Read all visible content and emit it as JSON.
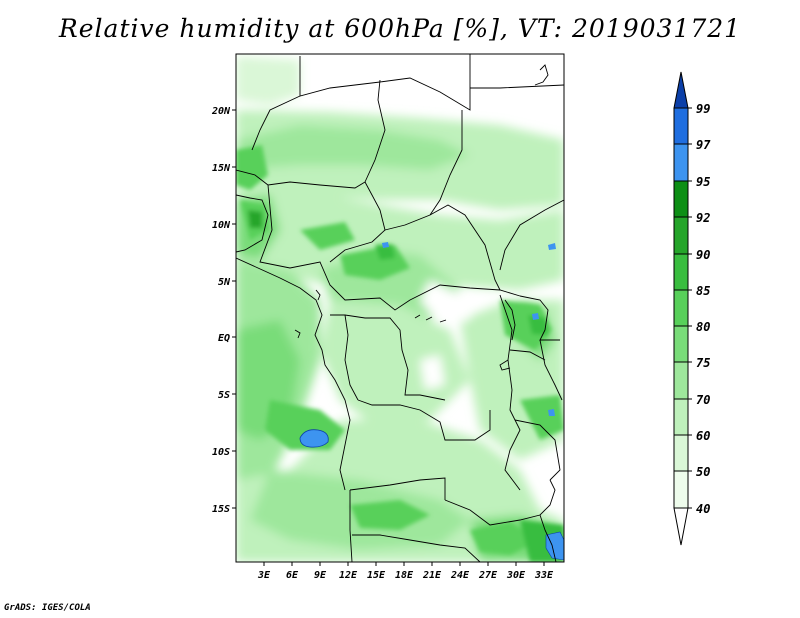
{
  "title": "Relative humidity at 600hPa [%], VT: 2019031721",
  "credit": "GrADS: IGES/COLA",
  "map": {
    "lat_ticks": [
      "20N",
      "15N",
      "10N",
      "5N",
      "EQ",
      "5S",
      "10S",
      "15S"
    ],
    "lon_ticks": [
      "3E",
      "6E",
      "9E",
      "12E",
      "15E",
      "18E",
      "21E",
      "24E",
      "27E",
      "30E",
      "33E"
    ]
  },
  "colorbar": {
    "levels": [
      "99",
      "97",
      "95",
      "92",
      "90",
      "85",
      "80",
      "75",
      "70",
      "60",
      "50",
      "40"
    ],
    "colors": [
      "#0b3fa8",
      "#1f6ee0",
      "#3d94f0",
      "#0d8f15",
      "#25a52a",
      "#39bd3f",
      "#58d05a",
      "#79dc79",
      "#9ee79c",
      "#bff1bc",
      "#daf7d7",
      "#eefcec",
      "#ffffff"
    ]
  }
}
